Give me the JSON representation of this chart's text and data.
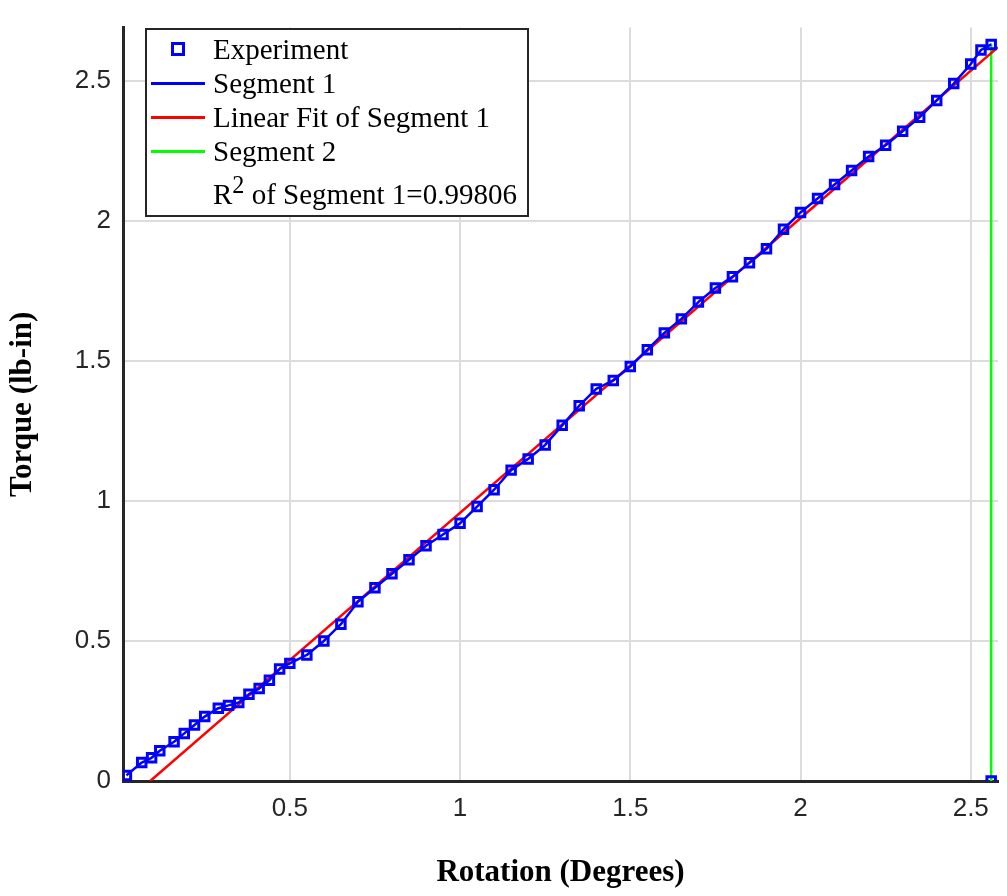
{
  "chart_data": {
    "type": "scatter",
    "xlabel": "Rotation (Degrees)",
    "ylabel": "Torque (lb-in)",
    "xlim": [
      0.01,
      2.58
    ],
    "ylim": [
      0,
      2.69
    ],
    "xticks": [
      0.5,
      1,
      1.5,
      2,
      2.5
    ],
    "yticks": [
      0,
      0.5,
      1,
      1.5,
      2,
      2.5
    ],
    "grid": true,
    "legend": "top left",
    "annotations": [
      "R$^{2}$ of Segment 1=0.99806"
    ],
    "series": [
      {
        "name": "Experiment",
        "type": "scatter",
        "marker": "square",
        "color": "#0000ff",
        "x": [
          0.02,
          0.065,
          0.094,
          0.118,
          0.16,
          0.19,
          0.22,
          0.25,
          0.29,
          0.32,
          0.35,
          0.38,
          0.41,
          0.44,
          0.47,
          0.5,
          0.55,
          0.6,
          0.65,
          0.7,
          0.75,
          0.8,
          0.85,
          0.9,
          0.95,
          1.0,
          1.05,
          1.1,
          1.15,
          1.2,
          1.25,
          1.3,
          1.35,
          1.4,
          1.45,
          1.5,
          1.55,
          1.6,
          1.65,
          1.7,
          1.75,
          1.8,
          1.85,
          1.9,
          1.95,
          2.0,
          2.05,
          2.1,
          2.15,
          2.2,
          2.25,
          2.3,
          2.35,
          2.4,
          2.45,
          2.5,
          2.53,
          2.56,
          2.56
        ],
        "values": [
          0.02,
          0.066,
          0.083,
          0.108,
          0.14,
          0.17,
          0.2,
          0.23,
          0.26,
          0.27,
          0.28,
          0.31,
          0.33,
          0.36,
          0.4,
          0.42,
          0.45,
          0.5,
          0.56,
          0.64,
          0.69,
          0.74,
          0.79,
          0.84,
          0.88,
          0.92,
          0.98,
          1.04,
          1.11,
          1.15,
          1.2,
          1.27,
          1.34,
          1.4,
          1.43,
          1.48,
          1.54,
          1.6,
          1.65,
          1.71,
          1.76,
          1.8,
          1.85,
          1.9,
          1.97,
          2.03,
          2.08,
          2.13,
          2.18,
          2.23,
          2.27,
          2.32,
          2.37,
          2.43,
          2.49,
          2.56,
          2.61,
          2.63,
          0
        ]
      },
      {
        "name": "Segment 1",
        "type": "line",
        "marker": "none",
        "color": "#0000ff",
        "x": [
          0.02,
          0.065,
          0.094,
          0.118,
          0.16,
          0.19,
          0.22,
          0.25,
          0.29,
          0.32,
          0.35,
          0.38,
          0.41,
          0.44,
          0.47,
          0.5,
          0.55,
          0.6,
          0.65,
          0.7,
          0.75,
          0.8,
          0.85,
          0.9,
          0.95,
          1.0,
          1.05,
          1.1,
          1.15,
          1.2,
          1.25,
          1.3,
          1.35,
          1.4,
          1.45,
          1.5,
          1.55,
          1.6,
          1.65,
          1.7,
          1.75,
          1.8,
          1.85,
          1.9,
          1.95,
          2.0,
          2.05,
          2.1,
          2.15,
          2.2,
          2.25,
          2.3,
          2.35,
          2.4,
          2.45,
          2.5,
          2.53,
          2.56
        ],
        "values": [
          0.02,
          0.066,
          0.083,
          0.108,
          0.14,
          0.17,
          0.2,
          0.23,
          0.26,
          0.27,
          0.28,
          0.31,
          0.33,
          0.36,
          0.4,
          0.42,
          0.45,
          0.5,
          0.56,
          0.64,
          0.69,
          0.74,
          0.79,
          0.84,
          0.88,
          0.92,
          0.98,
          1.04,
          1.11,
          1.15,
          1.2,
          1.27,
          1.34,
          1.4,
          1.43,
          1.48,
          1.54,
          1.6,
          1.65,
          1.71,
          1.76,
          1.8,
          1.85,
          1.9,
          1.97,
          2.03,
          2.08,
          2.13,
          2.18,
          2.23,
          2.27,
          2.32,
          2.37,
          2.43,
          2.49,
          2.56,
          2.61,
          2.63
        ]
      },
      {
        "name": "Linear Fit of Segment 1",
        "type": "line",
        "marker": "none",
        "color": "#ff0000",
        "x": [
          0.09,
          2.58
        ],
        "values": [
          0,
          2.62
        ]
      },
      {
        "name": "Segment 2",
        "type": "line",
        "marker": "none",
        "color": "#00ff00",
        "x": [
          2.56,
          2.56
        ],
        "values": [
          2.63,
          0
        ]
      }
    ]
  }
}
